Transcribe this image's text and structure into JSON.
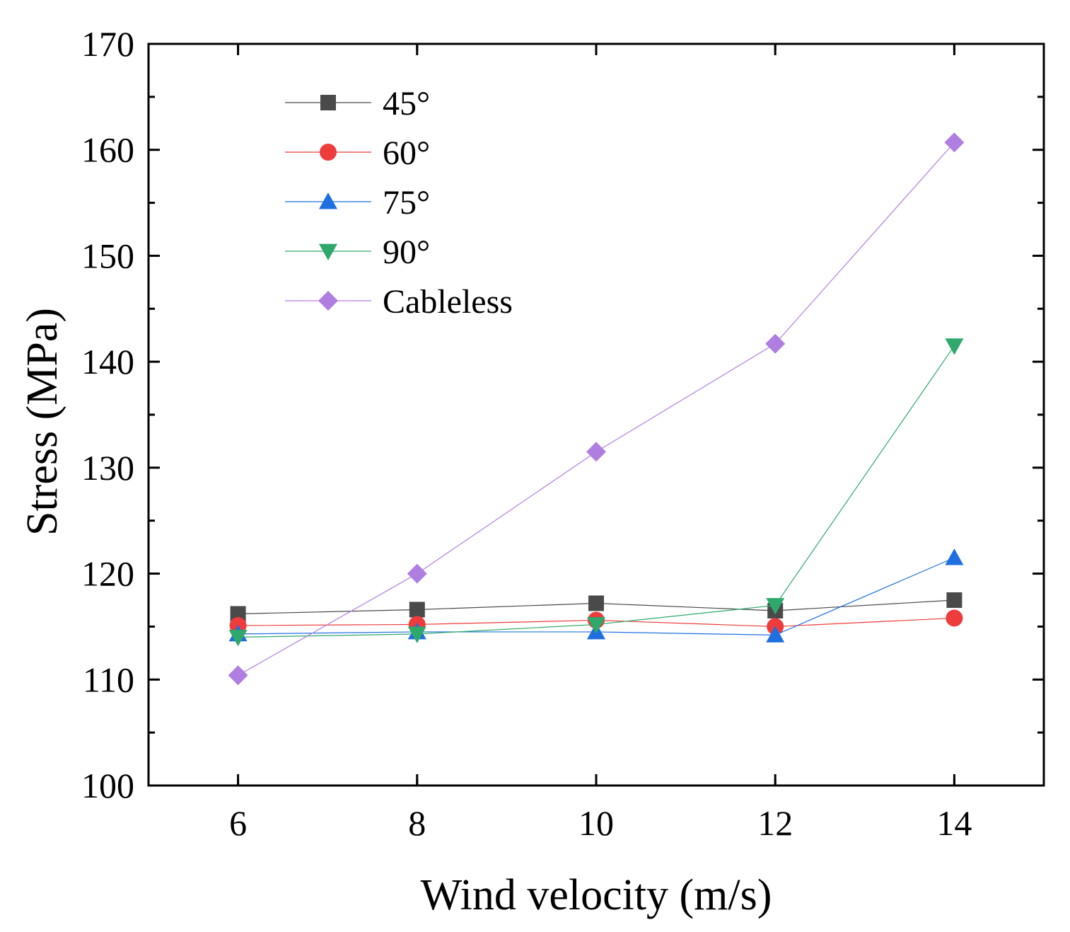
{
  "chart_data": {
    "type": "line",
    "title": "",
    "xlabel": "Wind velocity (m/s)",
    "ylabel": "Stress (MPa)",
    "xlim": [
      5,
      15
    ],
    "ylim": [
      100,
      170
    ],
    "xticks": [
      6,
      8,
      10,
      12,
      14
    ],
    "yticks": [
      100,
      110,
      120,
      130,
      140,
      150,
      160,
      170
    ],
    "x": [
      6,
      8,
      10,
      12,
      14
    ],
    "legend_position": "top-left",
    "grid": false,
    "series": [
      {
        "name": "45°",
        "color": "#4a4a4a",
        "marker": "square",
        "values": [
          116.2,
          116.6,
          117.2,
          116.5,
          117.5
        ]
      },
      {
        "name": "60°",
        "color": "#ee3b3b",
        "marker": "circle",
        "values": [
          115.1,
          115.2,
          115.6,
          115.0,
          115.8
        ]
      },
      {
        "name": "75°",
        "color": "#1f6fe0",
        "marker": "triangle-up",
        "values": [
          114.3,
          114.5,
          114.5,
          114.2,
          121.5
        ]
      },
      {
        "name": "90°",
        "color": "#2ea86b",
        "marker": "triangle-down",
        "values": [
          114.0,
          114.3,
          115.2,
          117.0,
          141.5
        ]
      },
      {
        "name": "Cableless",
        "color": "#b07ee0",
        "marker": "diamond",
        "values": [
          110.4,
          120.0,
          131.5,
          141.7,
          160.7
        ]
      }
    ]
  }
}
